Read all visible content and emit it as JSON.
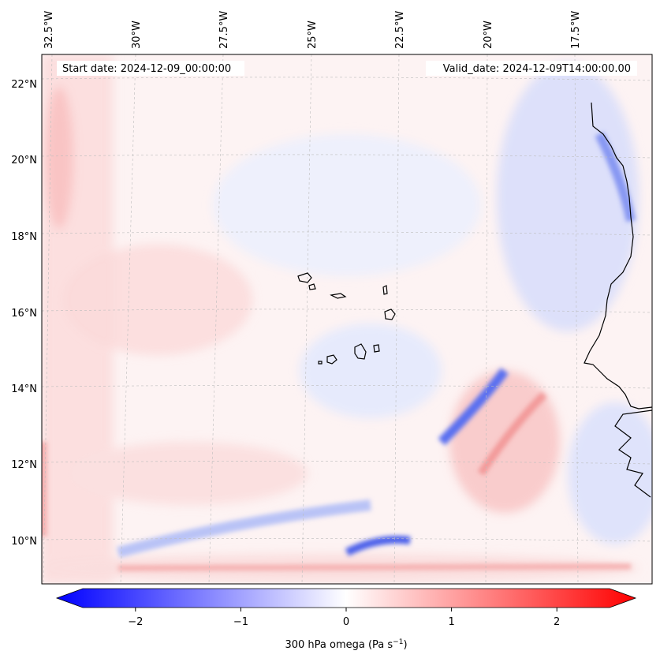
{
  "map": {
    "start_label": "Start date: 2024-12-09_00:00:00",
    "valid_label": "Valid_date: 2024-12-09T14:00:00.00",
    "lon_labels": [
      "32.5°W",
      "30°W",
      "27.5°W",
      "25°W",
      "22.5°W",
      "20°W",
      "17.5°W"
    ],
    "lat_labels": [
      "22°N",
      "20°N",
      "18°N",
      "16°N",
      "14°N",
      "12°N",
      "10°N"
    ]
  },
  "colorbar": {
    "ticks": [
      "−2",
      "−1",
      "0",
      "1",
      "2"
    ],
    "title": "300 hPa omega (Pa s",
    "unit_exp": "−1",
    "title_close": ")",
    "range": [
      -2.5,
      2.5
    ],
    "colors": {
      "neg": "#0000ff",
      "mid": "#ffffff",
      "pos": "#ff0000"
    }
  }
}
